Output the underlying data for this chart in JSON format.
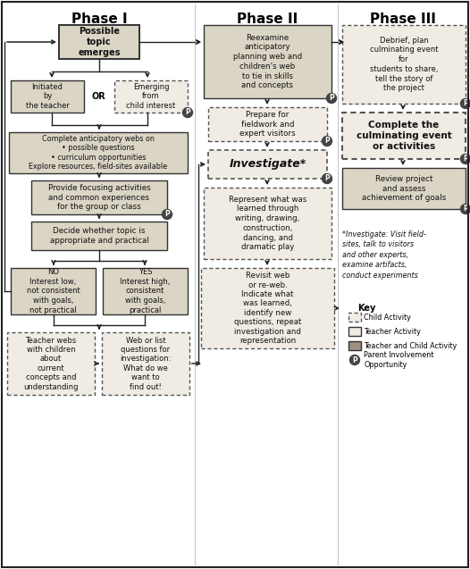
{
  "title_phase1": "Phase I",
  "title_phase2": "Phase II",
  "title_phase3": "Phase III",
  "bg_color": "#f0ece4",
  "fill_solid": "#dbd5c5",
  "fill_dashed": "#f0ece4",
  "fill_dark": "#a09080",
  "edge_solid": "#333333",
  "edge_dashed": "#555555",
  "text_color": "#111111",
  "p_fill": "#444444"
}
